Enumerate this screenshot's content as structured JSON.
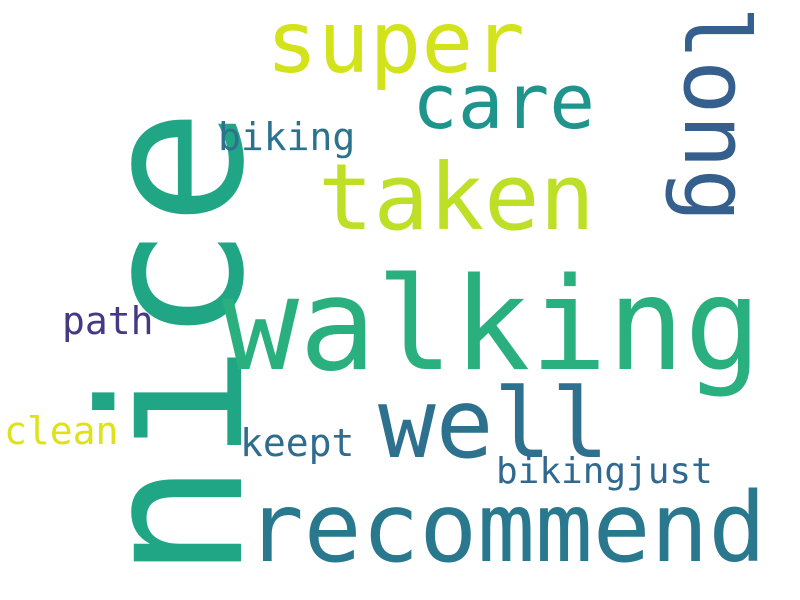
{
  "words": [
    {
      "id": "nice",
      "text": "nice",
      "color": "#21a685",
      "orientation": "vertical"
    },
    {
      "id": "walking",
      "text": "walking",
      "color": "#2ab07f",
      "orientation": "horizontal"
    },
    {
      "id": "recommend",
      "text": "recommend",
      "color": "#2a788e",
      "orientation": "horizontal"
    },
    {
      "id": "super",
      "text": "super",
      "color": "#d2e21b",
      "orientation": "horizontal"
    },
    {
      "id": "taken",
      "text": "taken",
      "color": "#bddf26",
      "orientation": "horizontal"
    },
    {
      "id": "care",
      "text": "care",
      "color": "#1f948c",
      "orientation": "horizontal"
    },
    {
      "id": "long",
      "text": "long",
      "color": "#355f8d",
      "orientation": "vertical"
    },
    {
      "id": "well",
      "text": "well",
      "color": "#2d718e",
      "orientation": "horizontal"
    },
    {
      "id": "biking",
      "text": "biking",
      "color": "#2c728e",
      "orientation": "horizontal"
    },
    {
      "id": "path",
      "text": "path",
      "color": "#443983",
      "orientation": "horizontal"
    },
    {
      "id": "clean",
      "text": "clean",
      "color": "#dde318",
      "orientation": "horizontal"
    },
    {
      "id": "keept",
      "text": "keept",
      "color": "#2f6c8e",
      "orientation": "horizontal"
    },
    {
      "id": "bikingjust",
      "text": "bikingjust",
      "color": "#31688e",
      "orientation": "horizontal"
    }
  ]
}
